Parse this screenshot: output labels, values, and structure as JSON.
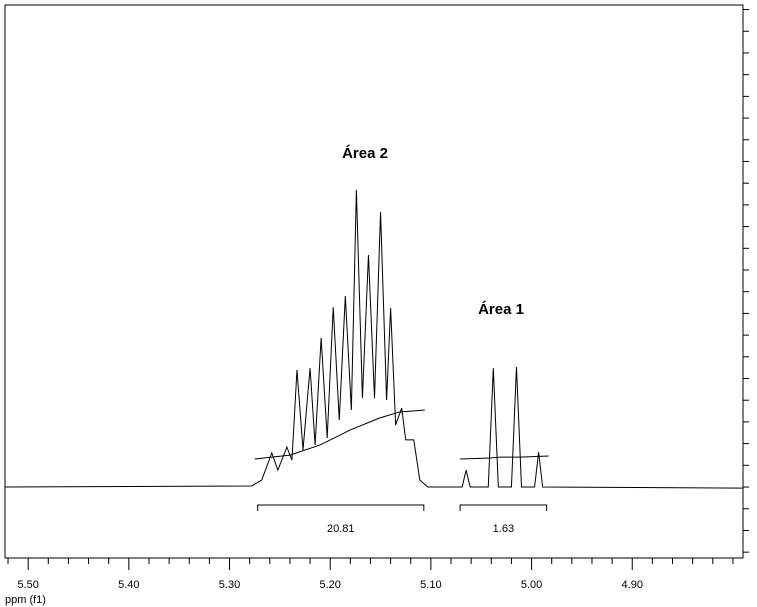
{
  "chart_data": {
    "type": "line",
    "color": "#000000",
    "xlabel": "ppm (f1)",
    "xlim": [
      5.523,
      4.79
    ],
    "ylim": [
      -3.27,
      22.21
    ],
    "xticks": [
      {
        "value": 5.5,
        "label": "5.50"
      },
      {
        "value": 5.4,
        "label": "5.40"
      },
      {
        "value": 5.3,
        "label": "5.30"
      },
      {
        "value": 5.2,
        "label": "5.20"
      },
      {
        "value": 5.1,
        "label": "5.10"
      },
      {
        "value": 5.0,
        "label": "5.00"
      },
      {
        "value": 4.9,
        "label": "4.90"
      }
    ],
    "xminorticks": [
      5.52,
      5.48,
      5.46,
      5.44,
      5.42,
      5.38,
      5.36,
      5.34,
      5.32,
      5.28,
      5.26,
      5.24,
      5.22,
      5.18,
      5.16,
      5.14,
      5.12,
      5.08,
      5.06,
      5.04,
      5.02,
      4.98,
      4.96,
      4.94,
      4.92,
      4.88,
      4.86,
      4.84,
      4.82,
      4.8
    ],
    "yticks": [
      -3,
      -2,
      -1,
      0,
      1,
      2,
      3,
      4,
      5,
      6,
      7,
      8,
      9,
      10,
      11,
      12,
      13,
      14,
      15,
      16,
      17,
      18,
      19,
      20,
      21,
      22
    ],
    "x": [
      5.523,
      5.278,
      5.268,
      5.258,
      5.252,
      5.243,
      5.238,
      5.233,
      5.227,
      5.22,
      5.215,
      5.209,
      5.203,
      5.197,
      5.191,
      5.185,
      5.179,
      5.174,
      5.168,
      5.162,
      5.156,
      5.15,
      5.144,
      5.14,
      5.135,
      5.129,
      5.125,
      5.117,
      5.111,
      5.103,
      5.069,
      5.065,
      5.061,
      5.043,
      5.038,
      5.033,
      5.02,
      5.015,
      5.01,
      4.997,
      4.993,
      4.989,
      4.79
    ],
    "values": [
      0,
      0.05,
      0.32,
      1.57,
      0.78,
      1.84,
      1.24,
      5.39,
      1.71,
      5.48,
      1.94,
      6.87,
      2.26,
      8.29,
      3.09,
      8.8,
      3.55,
      13.69,
      4.1,
      10.69,
      4.1,
      12.67,
      4.01,
      8.25,
      2.86,
      3.64,
      2.17,
      2.17,
      0.32,
      0,
      0,
      0.78,
      0,
      0,
      5.48,
      0,
      0,
      5.53,
      0,
      0,
      1.61,
      0,
      -0.05
    ],
    "integral_curves": [
      {
        "x": [
          5.275,
          5.24,
          5.21,
          5.18,
          5.151,
          5.131,
          5.106
        ],
        "values": [
          1.29,
          1.47,
          1.94,
          2.63,
          3.18,
          3.46,
          3.55
        ]
      },
      {
        "x": [
          5.071,
          5.041,
          5.031,
          5.011,
          4.983
        ],
        "values": [
          1.29,
          1.34,
          1.38,
          1.38,
          1.43
        ]
      }
    ],
    "integrals": [
      {
        "from": 5.272,
        "to": 5.107,
        "value": 20.81
      },
      {
        "from": 5.071,
        "to": 4.985,
        "value": 1.63
      }
    ],
    "annotations": [
      "Área 2",
      "Área 1"
    ]
  }
}
